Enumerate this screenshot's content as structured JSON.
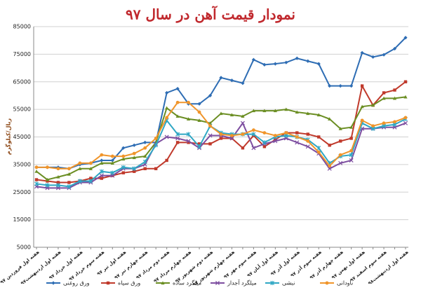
{
  "chart_data": {
    "type": "line",
    "title": "نمودار قیمت آهن در سال ۹۷",
    "y_label": "ریال/کیلوگرم",
    "categories": [
      "هفته اول فروردین ۹۷",
      null,
      "هفته اول اردیبهشت۹۷",
      null,
      "هفته اول خرداد ۹۷",
      null,
      "هفته سوم خرداد ۹۷",
      null,
      "هفته اول تیر ۹۷",
      null,
      "هفته چهارم تیر ۹۷",
      null,
      "هفته دوم مرداد ۹۷",
      null,
      "هفته چهارم مرداد ۹۷",
      null,
      "هفته دوم شهریور ۹۷",
      null,
      "هفته چهارم شهریور ۹۷",
      null,
      "هفته سوم مهر ۹۷",
      null,
      "هفته اول آبان ۹۷",
      null,
      "هفته اول آذر ۹۷",
      null,
      "هفته سوم آذر ۹۷",
      null,
      "هفته چهارم آذر ۹۷",
      null,
      "هفته اول بهمن ۹۷",
      null,
      "هفته سوم اسفند ۹۷",
      null,
      "هفته اول اردیبهشت۹۸"
    ],
    "series": [
      {
        "name": "ورق روغنی",
        "color": "#2e6db4",
        "marker": "diamond",
        "values": [
          34000,
          34000,
          34000,
          33500,
          35000,
          35500,
          36500,
          36500,
          41000,
          42000,
          43000,
          43000,
          61000,
          62500,
          57000,
          57000,
          60000,
          66500,
          65500,
          64500,
          73000,
          71200,
          71500,
          72000,
          73500,
          72500,
          71500,
          63500,
          63500,
          63500,
          75500,
          74000,
          74800,
          77000,
          81000
        ]
      },
      {
        "name": "ورق سیاه",
        "color": "#c0392b",
        "marker": "square",
        "values": [
          29500,
          29000,
          28500,
          28500,
          29000,
          30000,
          30000,
          31000,
          32000,
          32500,
          33500,
          33500,
          36500,
          43000,
          43000,
          42500,
          42500,
          44500,
          44500,
          41000,
          45500,
          41500,
          44000,
          46500,
          46500,
          46000,
          45000,
          42000,
          43500,
          44500,
          63500,
          56500,
          61000,
          62000,
          65000
        ]
      },
      {
        "name": "میلگرد ساده",
        "color": "#6b8e23",
        "marker": "triangle",
        "values": [
          32500,
          29500,
          30500,
          31500,
          33500,
          33500,
          35500,
          35500,
          37000,
          37500,
          38000,
          43000,
          55500,
          52500,
          51500,
          51000,
          50000,
          53500,
          53000,
          52500,
          54500,
          54500,
          54500,
          55000,
          54000,
          53500,
          53000,
          51500,
          48000,
          48500,
          56000,
          56500,
          59000,
          59000,
          59500
        ]
      },
      {
        "name": "میلگرد آجدار",
        "color": "#7d4ea0",
        "marker": "x",
        "values": [
          27000,
          26500,
          26500,
          26500,
          28500,
          28500,
          31000,
          31000,
          33500,
          33500,
          35000,
          42500,
          45000,
          44500,
          43500,
          41000,
          45500,
          45500,
          44500,
          50000,
          41000,
          42500,
          43500,
          44500,
          43000,
          41500,
          39000,
          33500,
          35500,
          36500,
          48000,
          48000,
          48500,
          48500,
          50000
        ]
      },
      {
        "name": "نبشی",
        "color": "#2fa7c4",
        "marker": "star",
        "values": [
          28000,
          27500,
          27500,
          27000,
          29000,
          29000,
          32500,
          32000,
          34000,
          33500,
          36000,
          42000,
          51000,
          46000,
          46000,
          41500,
          49000,
          46500,
          46000,
          46000,
          46000,
          43000,
          45000,
          45500,
          45000,
          44000,
          41000,
          35500,
          38000,
          38500,
          50000,
          48000,
          49000,
          49500,
          51500
        ]
      },
      {
        "name": "ناودانی",
        "color": "#f0952b",
        "marker": "circle",
        "values": [
          34000,
          34000,
          33500,
          33500,
          35500,
          35500,
          38500,
          38000,
          38000,
          39000,
          41000,
          44500,
          52000,
          57500,
          57500,
          54000,
          49000,
          46000,
          45500,
          46000,
          47500,
          46500,
          45500,
          46500,
          45000,
          43500,
          39500,
          34500,
          38500,
          40000,
          51000,
          49000,
          50000,
          50500,
          52000
        ]
      }
    ],
    "ylim": [
      5000,
      85000
    ],
    "yticks": [
      5000,
      15000,
      25000,
      35000,
      45000,
      55000,
      65000,
      75000,
      85000
    ],
    "grid": true
  }
}
